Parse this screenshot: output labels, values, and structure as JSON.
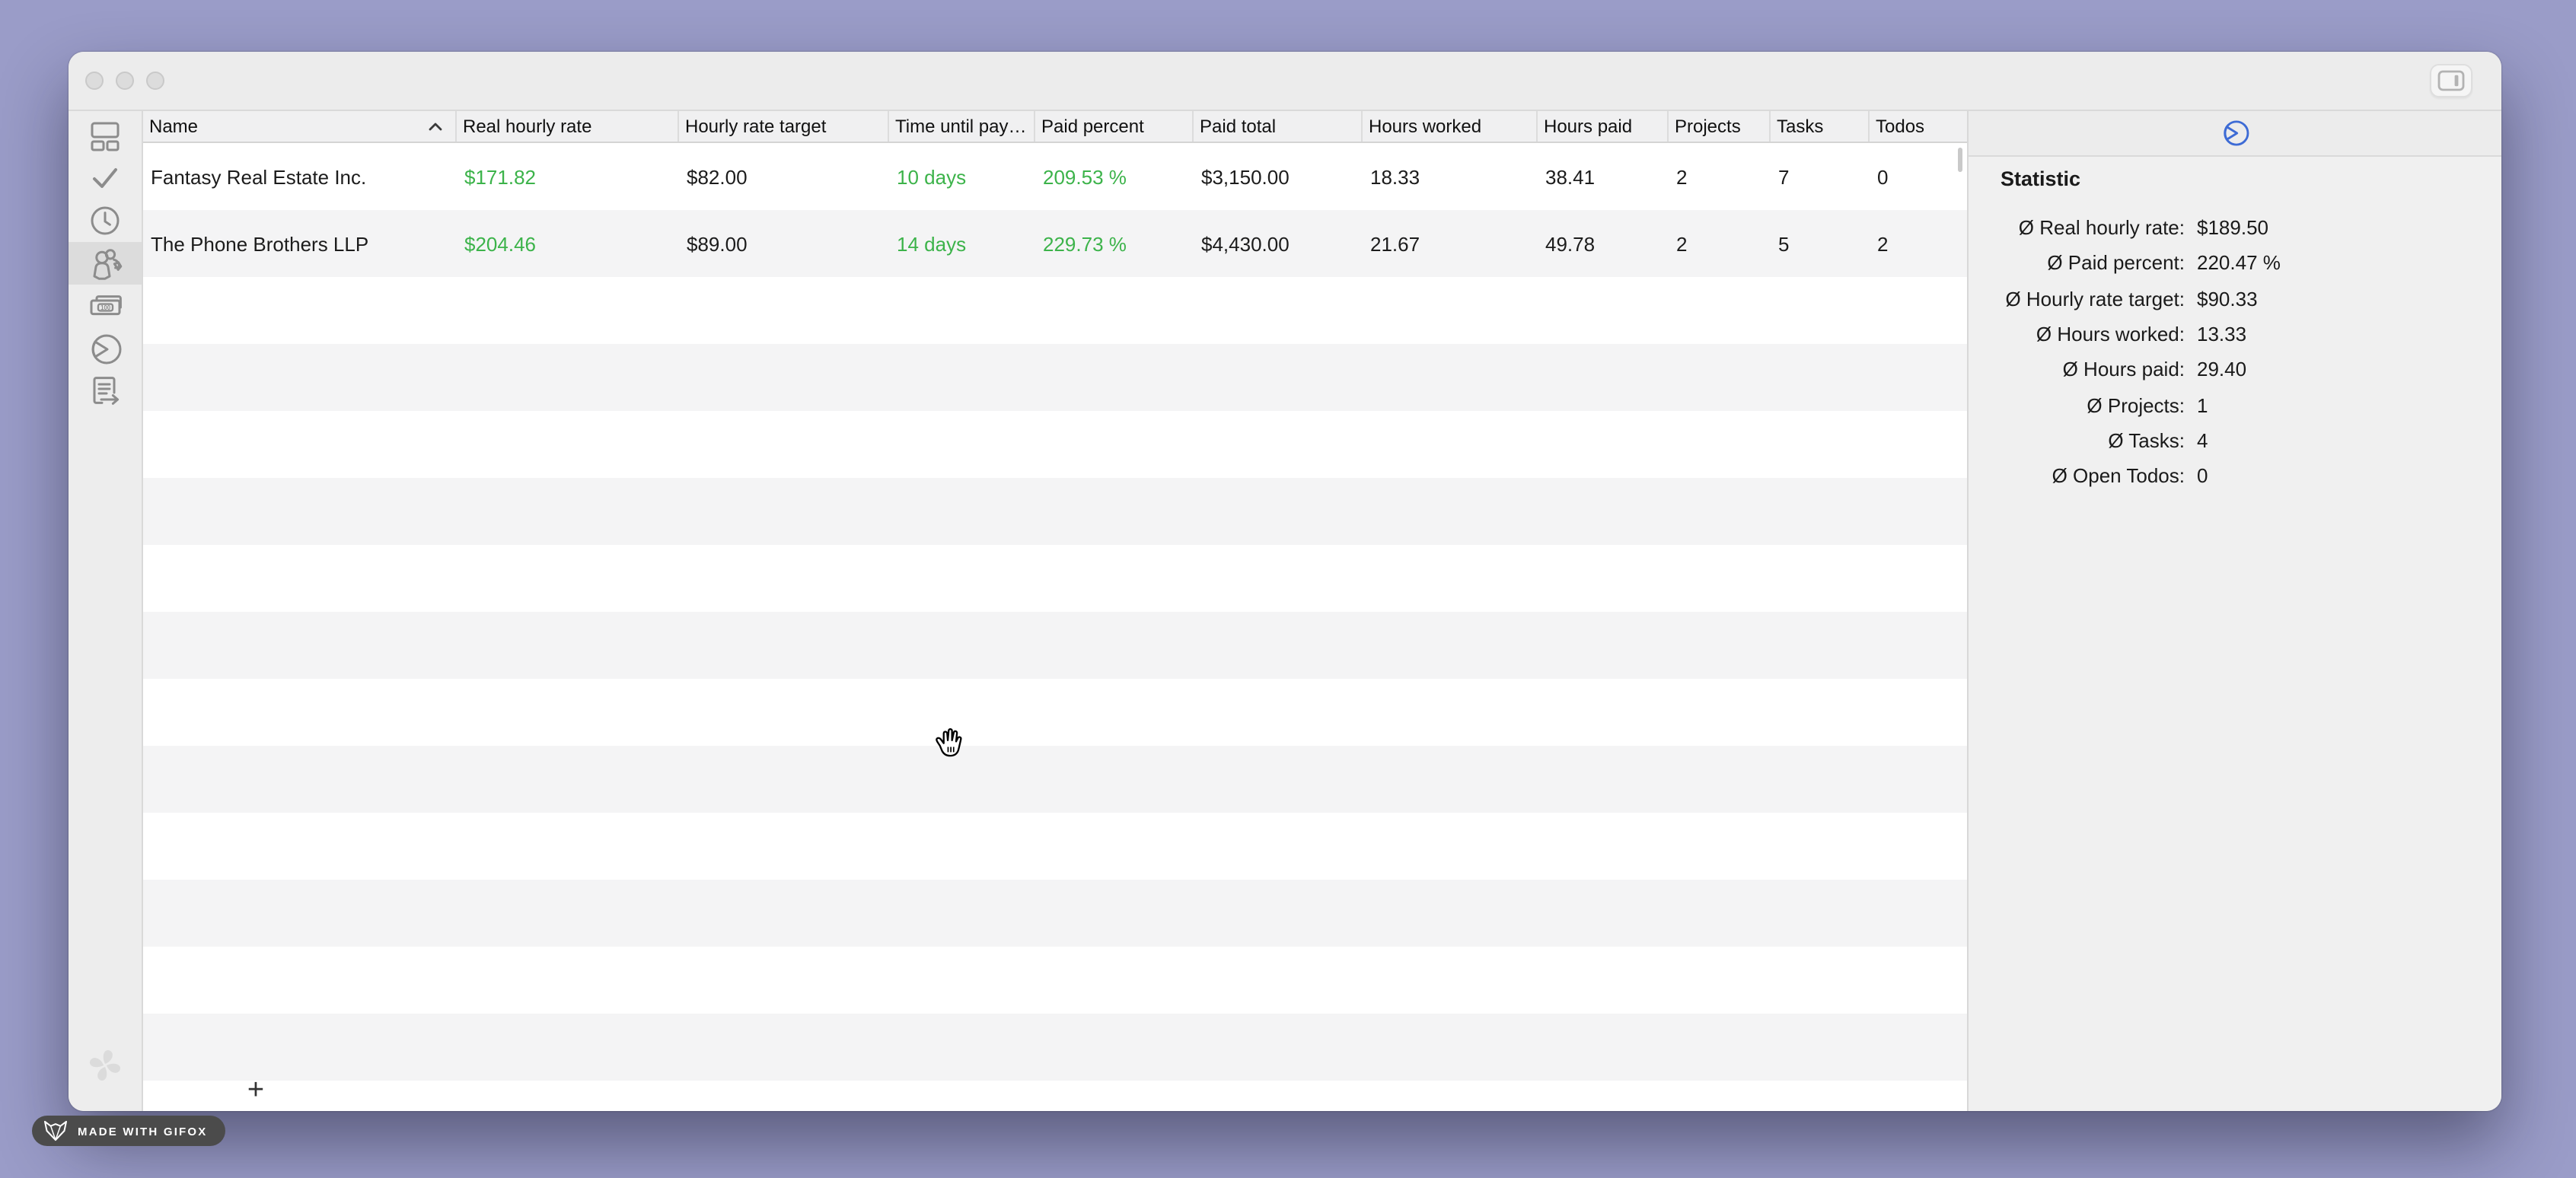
{
  "colors": {
    "accent_green": "#3cb34a",
    "accent_blue": "#3d6bd5",
    "desktop_purple": "#9a9cc8"
  },
  "sidebar": {
    "money_label": "100",
    "items": [
      {
        "icon": "dashboard-icon",
        "selected": false
      },
      {
        "icon": "tasks-check-icon",
        "selected": false
      },
      {
        "icon": "time-clock-icon",
        "selected": false
      },
      {
        "icon": "clients-people-icon",
        "selected": true
      },
      {
        "icon": "invoices-money-icon",
        "selected": false
      },
      {
        "icon": "statistics-pie-icon",
        "selected": false
      },
      {
        "icon": "reports-document-icon",
        "selected": false
      }
    ]
  },
  "table": {
    "sort": {
      "column": "name",
      "direction": "asc"
    },
    "columns": [
      {
        "key": "name",
        "label": "Name",
        "sorted": true
      },
      {
        "key": "real_hourly_rate",
        "label": "Real hourly rate",
        "accent": true
      },
      {
        "key": "hourly_rate_target",
        "label": "Hourly rate target"
      },
      {
        "key": "time_until_pay",
        "label": "Time until pay…",
        "accent": true
      },
      {
        "key": "paid_percent",
        "label": "Paid percent",
        "accent": true
      },
      {
        "key": "paid_total",
        "label": "Paid total"
      },
      {
        "key": "hours_worked",
        "label": "Hours worked"
      },
      {
        "key": "hours_paid",
        "label": "Hours paid"
      },
      {
        "key": "projects",
        "label": "Projects"
      },
      {
        "key": "tasks",
        "label": "Tasks"
      },
      {
        "key": "todos",
        "label": "Todos"
      }
    ],
    "rows": [
      {
        "name": "Fantasy Real Estate Inc.",
        "real_hourly_rate": "$171.82",
        "hourly_rate_target": "$82.00",
        "time_until_pay": "10 days",
        "paid_percent": "209.53 %",
        "paid_total": "$3,150.00",
        "hours_worked": "18.33",
        "hours_paid": "38.41",
        "projects": "2",
        "tasks": "7",
        "todos": "0"
      },
      {
        "name": "The Phone Brothers LLP",
        "real_hourly_rate": "$204.46",
        "hourly_rate_target": "$89.00",
        "time_until_pay": "14 days",
        "paid_percent": "229.73 %",
        "paid_total": "$4,430.00",
        "hours_worked": "21.67",
        "hours_paid": "49.78",
        "projects": "2",
        "tasks": "5",
        "todos": "2"
      }
    ],
    "add_button_label": "+"
  },
  "stats_panel": {
    "title": "Statistic",
    "rows": [
      {
        "label": "Ø Real hourly rate:",
        "value": "$189.50"
      },
      {
        "label": "Ø Paid percent:",
        "value": "220.47 %"
      },
      {
        "label": "Ø Hourly rate target:",
        "value": "$90.33"
      },
      {
        "label": "Ø Hours worked:",
        "value": "13.33"
      },
      {
        "label": "Ø Hours paid:",
        "value": "29.40"
      },
      {
        "label": "Ø Projects:",
        "value": "1"
      },
      {
        "label": "Ø Tasks:",
        "value": "4"
      },
      {
        "label": "Ø Open Todos:",
        "value": "0"
      }
    ]
  },
  "badge": {
    "text": "MADE WITH GIFOX"
  }
}
